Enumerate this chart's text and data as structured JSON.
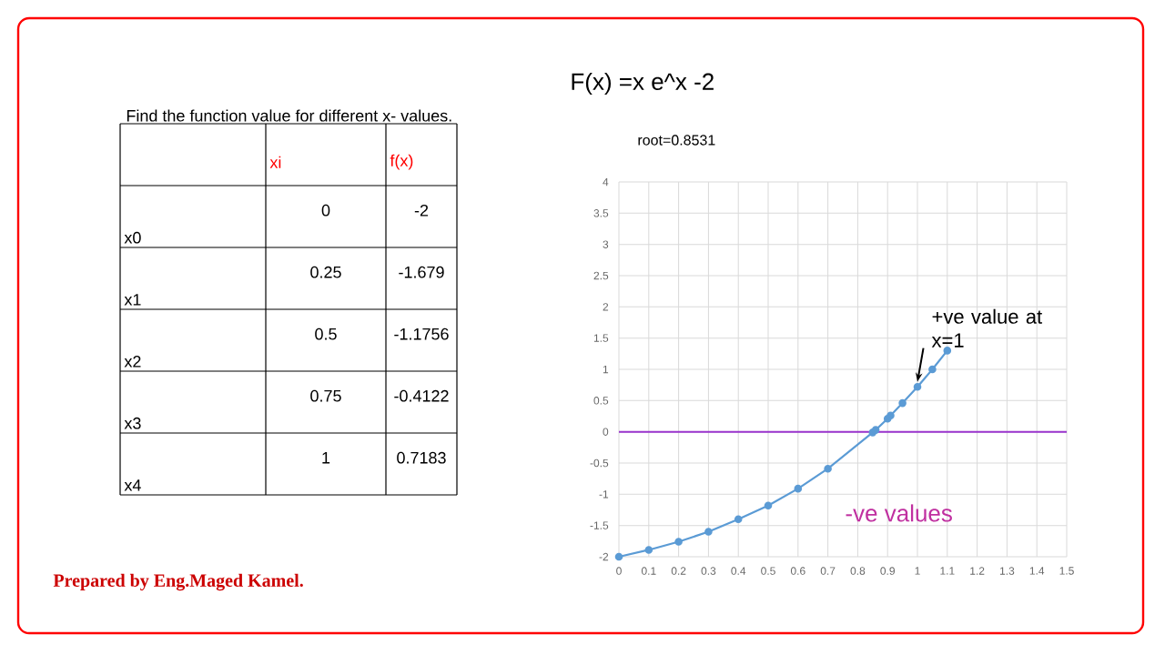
{
  "chart_data": [
    {
      "type": "other",
      "title": "Find the function value  for different x- values.",
      "categories": [
        "x0",
        "x1",
        "x2",
        "x3",
        "x4"
      ],
      "series": [
        {
          "name": "xi",
          "color": "#ff0000",
          "values": [
            0,
            0.25,
            0.5,
            0.75,
            1
          ]
        },
        {
          "name": "f(x)",
          "color": "#ff0000",
          "values": [
            -2,
            -1.679,
            -1.1756,
            -0.4122,
            0.7183
          ]
        }
      ],
      "data_labels": true,
      "annotations": [
        "Prepared by Eng.Maged Kamel."
      ]
    },
    {
      "type": "line",
      "title": "F(x) =x e^x -2",
      "subtitle": "root=0.8531",
      "x": [
        0,
        0.1,
        0.2,
        0.3,
        0.4,
        0.5,
        0.6,
        0.7,
        0.85,
        0.86,
        0.9,
        0.91,
        0.95,
        1,
        1.05,
        1.1
      ],
      "values": [
        -2,
        -1.89,
        -1.76,
        -1.6,
        -1.4,
        -1.18,
        -0.91,
        -0.59,
        -0.01,
        0.03,
        0.21,
        0.26,
        0.46,
        0.72,
        1.0,
        1.3
      ],
      "color": "#5b9bd5",
      "marker": "circle",
      "xlim": [
        0,
        1.5
      ],
      "ylim": [
        -2,
        4
      ],
      "xticks": [
        0,
        0.1,
        0.2,
        0.3,
        0.4,
        0.5,
        0.6,
        0.7,
        0.8,
        0.9,
        1,
        1.1,
        1.2,
        1.3,
        1.4,
        1.5
      ],
      "yticks": [
        -2,
        -1.5,
        -1,
        -0.5,
        0,
        0.5,
        1,
        1.5,
        2,
        2.5,
        3,
        3.5,
        4
      ],
      "grid": true,
      "ref_lines": [
        {
          "axis": "y",
          "value": 0,
          "color": "#9933cc"
        }
      ],
      "annotations": [
        {
          "text": "+ve value at x=1",
          "x": 1,
          "y": 0.72
        },
        "-ve values"
      ]
    }
  ]
}
